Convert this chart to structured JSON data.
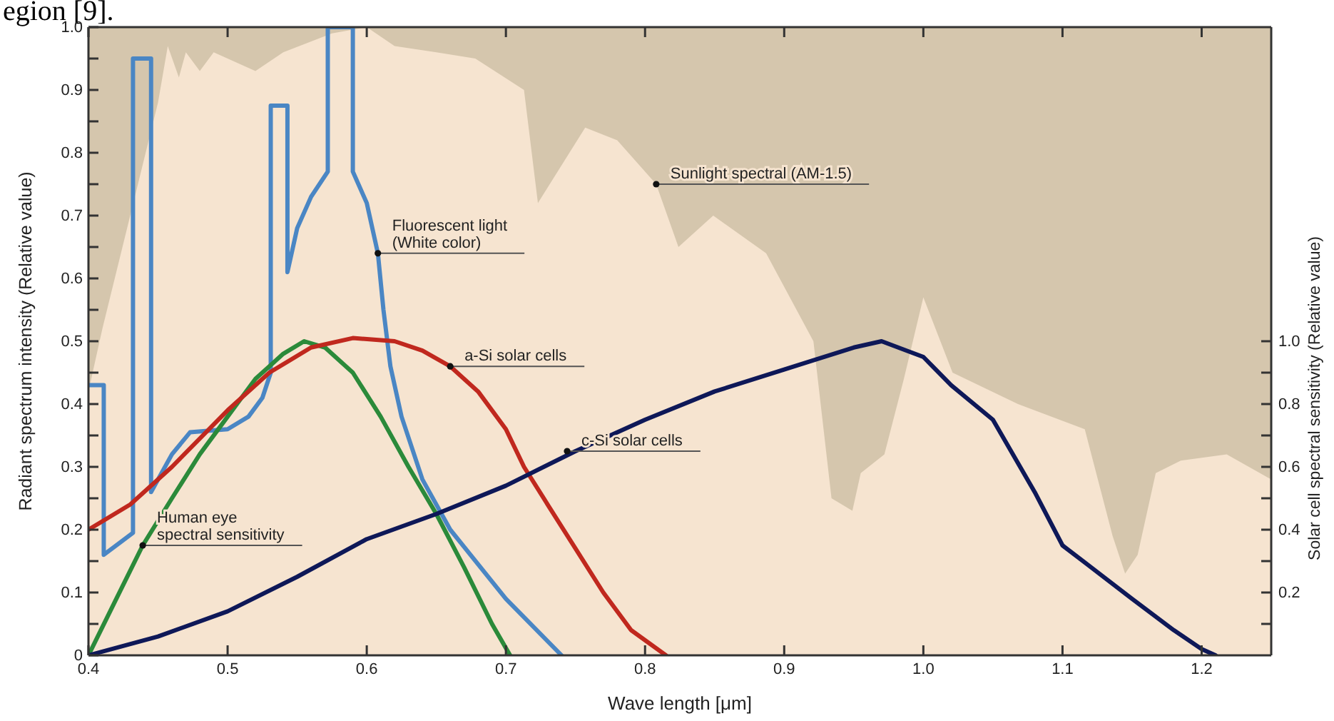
{
  "chart_data": {
    "type": "line",
    "title": "egion [9].",
    "xlabel": "Wave length [μm]",
    "ylabel": "Radiant spectrum intensity (Relative value)",
    "y2label": "Solar cell spectral sensitivity (Relative value)",
    "xlim": [
      0.4,
      1.25
    ],
    "xticks": [
      {
        "value": 0.4,
        "label": "0.4"
      },
      {
        "value": 0.5,
        "label": "0.5"
      },
      {
        "value": 0.6,
        "label": "0.6"
      },
      {
        "value": 0.7,
        "label": "0.7"
      },
      {
        "value": 0.8,
        "label": "0.8"
      },
      {
        "value": 0.9,
        "label": "0.9"
      },
      {
        "value": 1.0,
        "label": "1.0"
      },
      {
        "value": 1.1,
        "label": "1.1"
      },
      {
        "value": 1.2,
        "label": "1.2"
      }
    ],
    "ylim": [
      0,
      1.0
    ],
    "yticks": [
      0,
      {
        "value": 0.05,
        "label": null
      },
      0.1,
      {
        "value": 0.15,
        "label": null
      },
      0.2,
      {
        "value": 0.25,
        "label": null
      },
      0.3,
      {
        "value": 0.35,
        "label": null
      },
      0.4,
      {
        "value": 0.45,
        "label": null
      },
      0.5,
      {
        "value": 0.55,
        "label": null
      },
      0.6,
      {
        "value": 0.65,
        "label": null
      },
      0.7,
      {
        "value": 0.75,
        "label": null
      },
      0.8,
      {
        "value": 0.85,
        "label": null
      },
      0.9,
      {
        "value": 0.95,
        "label": null
      },
      {
        "value": 1.0,
        "label": "1.0"
      }
    ],
    "y2lim": [
      0,
      2.0
    ],
    "y2ticks": [
      {
        "value": 0.1,
        "label": null
      },
      0.2,
      {
        "value": 0.3,
        "label": null
      },
      0.4,
      {
        "value": 0.5,
        "label": null
      },
      0.6,
      {
        "value": 0.7,
        "label": null
      },
      0.8,
      {
        "value": 0.9,
        "label": null
      },
      {
        "value": 1.0,
        "label": "1.0"
      }
    ],
    "series": [
      {
        "type": "area",
        "color": "#f6e4d0",
        "x": [
          0.4,
          0.41,
          0.43,
          0.45,
          0.457,
          0.465,
          0.47,
          0.48,
          0.49,
          0.5,
          0.52,
          0.54,
          0.575,
          0.6,
          0.62,
          0.65,
          0.678,
          0.713,
          0.723,
          0.757,
          0.78,
          0.808,
          0.824,
          0.849,
          0.887,
          0.921,
          0.934,
          0.949,
          0.955,
          0.972,
          0.986,
          1.0,
          1.021,
          1.068,
          1.116,
          1.136,
          1.145,
          1.154,
          1.167,
          1.185,
          1.218,
          1.25
        ],
        "values": [
          0.42,
          0.52,
          0.7,
          0.88,
          0.97,
          0.92,
          0.96,
          0.93,
          0.96,
          0.95,
          0.93,
          0.96,
          0.99,
          1.0,
          0.97,
          0.96,
          0.95,
          0.9,
          0.72,
          0.84,
          0.82,
          0.75,
          0.65,
          0.7,
          0.64,
          0.5,
          0.25,
          0.23,
          0.29,
          0.32,
          0.44,
          0.57,
          0.45,
          0.4,
          0.36,
          0.19,
          0.13,
          0.16,
          0.29,
          0.31,
          0.32,
          0.28
        ]
      },
      {
        "color": "#4a86c4",
        "x": [
          0.4,
          0.411,
          0.411,
          0.432,
          0.432,
          0.445,
          0.445,
          0.46,
          0.473,
          0.5,
          0.515,
          0.525,
          0.531,
          0.531,
          0.543,
          0.543,
          0.55,
          0.56,
          0.572,
          0.572,
          0.59,
          0.59,
          0.6,
          0.608,
          0.612,
          0.617,
          0.625,
          0.64,
          0.66,
          0.7,
          0.74
        ],
        "values": [
          0.43,
          0.43,
          0.16,
          0.195,
          0.95,
          0.95,
          0.26,
          0.32,
          0.355,
          0.36,
          0.38,
          0.41,
          0.45,
          0.875,
          0.875,
          0.61,
          0.68,
          0.73,
          0.77,
          1.0,
          1.0,
          0.77,
          0.72,
          0.64,
          0.55,
          0.46,
          0.38,
          0.28,
          0.2,
          0.09,
          0
        ]
      },
      {
        "color": "#2b8a3a",
        "x": [
          0.4,
          0.42,
          0.439,
          0.46,
          0.48,
          0.5,
          0.52,
          0.54,
          0.555,
          0.57,
          0.59,
          0.61,
          0.63,
          0.65,
          0.67,
          0.69,
          0.703
        ],
        "values": [
          0,
          0.09,
          0.175,
          0.25,
          0.32,
          0.38,
          0.44,
          0.48,
          0.5,
          0.49,
          0.45,
          0.38,
          0.3,
          0.225,
          0.14,
          0.05,
          0
        ]
      },
      {
        "color": "#c0281e",
        "x": [
          0.4,
          0.43,
          0.46,
          0.5,
          0.53,
          0.56,
          0.59,
          0.62,
          0.64,
          0.66,
          0.68,
          0.7,
          0.713,
          0.73,
          0.75,
          0.77,
          0.79,
          0.815
        ],
        "values": [
          0.2,
          0.24,
          0.3,
          0.39,
          0.45,
          0.49,
          0.505,
          0.5,
          0.485,
          0.46,
          0.42,
          0.36,
          0.3,
          0.24,
          0.17,
          0.1,
          0.04,
          0
        ]
      },
      {
        "color": "#0e1858",
        "axis": "y2",
        "x": [
          0.4,
          0.45,
          0.5,
          0.55,
          0.6,
          0.65,
          0.7,
          0.75,
          0.8,
          0.85,
          0.9,
          0.95,
          0.97,
          1.0,
          1.02,
          1.05,
          1.08,
          1.1,
          1.15,
          1.18,
          1.2,
          1.21
        ],
        "values": [
          0,
          0.06,
          0.14,
          0.25,
          0.37,
          0.45,
          0.54,
          0.65,
          0.75,
          0.84,
          0.91,
          0.98,
          1.0,
          0.95,
          0.86,
          0.75,
          0.52,
          0.35,
          0.18,
          0.08,
          0.02,
          0
        ]
      }
    ],
    "annotations": [
      {
        "text": "Sunlight spectral (AM-1.5)",
        "x": 0.808,
        "y": 0.75
      },
      {
        "text": "Fluorescent light\n(White color)",
        "x": 0.608,
        "y": 0.64
      },
      {
        "text": "a-Si solar cells",
        "x": 0.66,
        "y": 0.46
      },
      {
        "text": "c-Si solar cells",
        "x": 0.744,
        "y": 0.325
      },
      {
        "text": "Human eye\nspectral sensitivity",
        "x": 0.439,
        "y": 0.175
      }
    ]
  }
}
